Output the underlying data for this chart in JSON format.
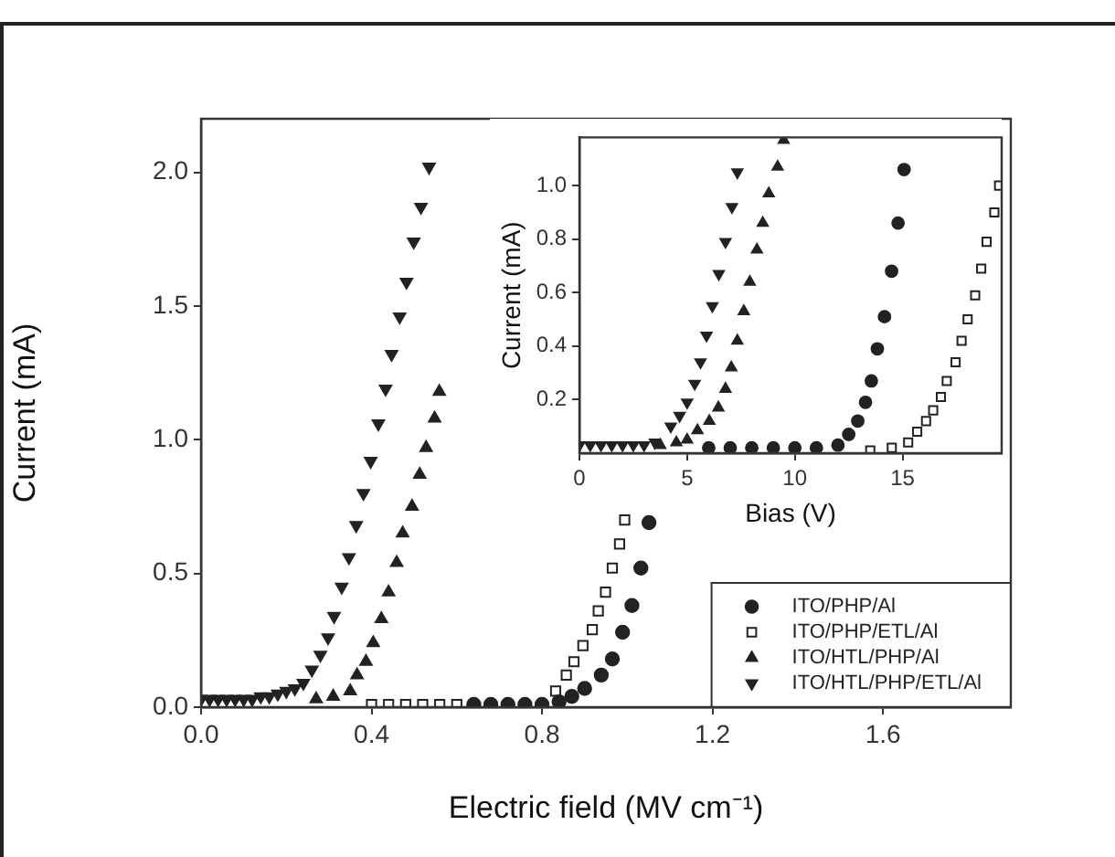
{
  "chart_data": [
    {
      "type": "scatter",
      "xlabel": "Electric field (MV cm⁻¹)",
      "ylabel": "Current (mA)",
      "xlim": [
        0,
        1.9
      ],
      "ylim": [
        0,
        2.2
      ],
      "xticks": [
        {
          "value": 0,
          "label": "0.0"
        },
        0.4,
        0.8,
        1.2,
        1.6
      ],
      "yticks": [
        {
          "value": 0,
          "label": "0.0"
        },
        0.5,
        {
          "value": 1,
          "label": "1.0"
        },
        1.5,
        {
          "value": 2,
          "label": "2.0"
        }
      ],
      "legend": "bottom right",
      "series": [
        {
          "name": "ITO/PHP/Al",
          "color": "#222222",
          "marker": "circle",
          "x": [
            0.64,
            0.68,
            0.72,
            0.76,
            0.8,
            0.84,
            0.87,
            0.9,
            0.939,
            0.965,
            0.989,
            1.011,
            1.032,
            1.051
          ],
          "values": [
            0.01,
            0.01,
            0.01,
            0.01,
            0.01,
            0.02,
            0.04,
            0.07,
            0.12,
            0.18,
            0.28,
            0.38,
            0.52,
            0.69
          ]
        },
        {
          "name": "ITO/PHP/ETL/Al",
          "color": "#222222",
          "marker": "square",
          "x": [
            0.4,
            0.44,
            0.48,
            0.52,
            0.56,
            0.6,
            0.832,
            0.857,
            0.875,
            0.896,
            0.918,
            0.932,
            0.949,
            0.965,
            0.982,
            0.994
          ],
          "values": [
            0.01,
            0.01,
            0.01,
            0.01,
            0.01,
            0.01,
            0.06,
            0.12,
            0.17,
            0.23,
            0.29,
            0.36,
            0.43,
            0.52,
            0.61,
            0.7
          ]
        },
        {
          "name": "ITO/HTL/PHP/Al",
          "color": "#222222",
          "marker": "triangle",
          "x": [
            0.27,
            0.31,
            0.35,
            0.366,
            0.387,
            0.404,
            0.423,
            0.44,
            0.459,
            0.473,
            0.495,
            0.513,
            0.528,
            0.548,
            0.559
          ],
          "values": [
            0.03,
            0.04,
            0.06,
            0.12,
            0.17,
            0.24,
            0.33,
            0.43,
            0.54,
            0.65,
            0.75,
            0.87,
            0.97,
            1.08,
            1.18
          ]
        },
        {
          "name": "ITO/HTL/PHP/ETL/Al",
          "color": "#222222",
          "marker": "triangle-down",
          "x": [
            0,
            0.02,
            0.04,
            0.06,
            0.08,
            0.1,
            0.12,
            0.14,
            0.16,
            0.18,
            0.2,
            0.22,
            0.24,
            0.26,
            0.28,
            0.298,
            0.312,
            0.33,
            0.347,
            0.364,
            0.381,
            0.398,
            0.416,
            0.433,
            0.447,
            0.466,
            0.482,
            0.499,
            0.516,
            0.535
          ],
          "values": [
            0.03,
            0.03,
            0.03,
            0.03,
            0.03,
            0.03,
            0.03,
            0.04,
            0.04,
            0.05,
            0.06,
            0.07,
            0.09,
            0.14,
            0.195,
            0.26,
            0.34,
            0.45,
            0.56,
            0.68,
            0.8,
            0.92,
            1.06,
            1.19,
            1.32,
            1.46,
            1.59,
            1.74,
            1.87,
            2.02
          ]
        }
      ]
    },
    {
      "type": "scatter",
      "xlabel": "Bias (V)",
      "ylabel": "Current (mA)",
      "xlim": [
        0,
        19.6
      ],
      "ylim": [
        0,
        1.18
      ],
      "xticks": [
        0,
        5,
        10,
        15
      ],
      "yticks": [
        0.2,
        0.4,
        0.6,
        0.8,
        {
          "value": 1,
          "label": "1.0"
        }
      ],
      "series": [
        {
          "color": "#222222",
          "marker": "circle",
          "x": [
            6,
            7,
            8,
            9,
            10,
            11,
            12,
            12.5,
            12.92,
            13.28,
            13.55,
            13.83,
            14.16,
            14.49,
            14.79,
            15.07
          ],
          "values": [
            0.02,
            0.02,
            0.02,
            0.02,
            0.02,
            0.02,
            0.03,
            0.07,
            0.12,
            0.19,
            0.27,
            0.39,
            0.51,
            0.68,
            0.86,
            1.06
          ]
        },
        {
          "color": "#222222",
          "marker": "square",
          "x": [
            13.5,
            14.5,
            15.26,
            15.68,
            16.09,
            16.42,
            16.78,
            17.05,
            17.46,
            17.74,
            18.02,
            18.37,
            18.65,
            18.9,
            19.26,
            19.48
          ],
          "values": [
            0.01,
            0.02,
            0.04,
            0.08,
            0.12,
            0.16,
            0.21,
            0.27,
            0.34,
            0.42,
            0.5,
            0.59,
            0.69,
            0.79,
            0.9,
            1.0
          ]
        },
        {
          "color": "#222222",
          "marker": "triangle",
          "x": [
            3.75,
            4.5,
            5,
            5.48,
            6.03,
            6.45,
            6.78,
            7.05,
            7.33,
            7.63,
            7.91,
            8.24,
            8.51,
            8.79,
            9.2,
            9.48
          ],
          "values": [
            0.03,
            0.04,
            0.05,
            0.085,
            0.12,
            0.17,
            0.24,
            0.32,
            0.42,
            0.53,
            0.64,
            0.76,
            0.86,
            0.97,
            1.07,
            1.17
          ]
        },
        {
          "color": "#222222",
          "marker": "triangle-down",
          "x": [
            0,
            0.5,
            1,
            1.5,
            2,
            2.5,
            3,
            3.5,
            4.24,
            4.65,
            5,
            5.35,
            5.62,
            5.9,
            6.17,
            6.47,
            6.78,
            7.08,
            7.33
          ],
          "values": [
            0.03,
            0.03,
            0.03,
            0.03,
            0.03,
            0.03,
            0.03,
            0.04,
            0.1,
            0.14,
            0.19,
            0.26,
            0.34,
            0.44,
            0.55,
            0.67,
            0.79,
            0.92,
            1.05
          ]
        }
      ]
    }
  ]
}
